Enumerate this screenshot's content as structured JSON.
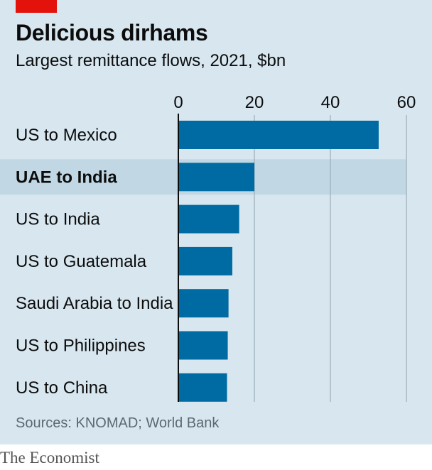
{
  "title": "Delicious dirhams",
  "subtitle": "Largest remittance flows, 2021, $bn",
  "source": "Sources: KNOMAD; World Bank",
  "brand": "The Economist",
  "colors": {
    "bar": "#006ba2",
    "highlight_band": "#c1d8e4",
    "background": "#d7e6ef",
    "accent": "#e3120b"
  },
  "chart_data": {
    "type": "bar",
    "orientation": "horizontal",
    "categories": [
      "US to Mexico",
      "UAE to India",
      "US to India",
      "US to Guatemala",
      "Saudi Arabia to India",
      "US to Philippines",
      "US to China"
    ],
    "values": [
      52.7,
      20.0,
      16.0,
      14.2,
      13.2,
      13.0,
      12.8
    ],
    "highlight": "UAE to India",
    "xlim": [
      0,
      60
    ],
    "xticks": [
      0,
      20,
      40,
      60
    ],
    "grid": true,
    "xaxis_position": "top"
  }
}
